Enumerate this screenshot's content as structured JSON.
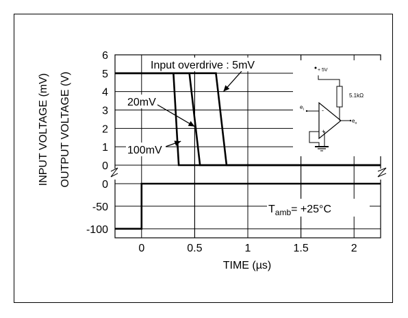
{
  "chart_data": {
    "type": "line",
    "xlabel": "TIME (µs)",
    "ylabel_output": "OUTPUT VOLTAGE (V)",
    "ylabel_input": "INPUT VOLTAGE (mV)",
    "xlim": [
      -0.25,
      2.25
    ],
    "x_ticks": [
      0,
      0.5,
      1,
      1.5,
      2
    ],
    "x_tick_labels": [
      "0",
      "0.5",
      "1",
      "1.5",
      "2"
    ],
    "output_ylim": [
      0,
      6
    ],
    "output_ticks": [
      0,
      1,
      2,
      3,
      4,
      5,
      6
    ],
    "output_tick_labels": [
      "0",
      "1",
      "2",
      "3",
      "4",
      "5",
      "6"
    ],
    "input_ylim": [
      -120,
      0
    ],
    "input_ticks": [
      0,
      -50,
      -100
    ],
    "input_tick_labels": [
      "0",
      "-50",
      "-100"
    ],
    "grid": true,
    "output_series": [
      {
        "name": "100mV",
        "x": [
          -0.25,
          0.3,
          0.35,
          2.25
        ],
        "y": [
          5,
          5,
          0,
          0
        ]
      },
      {
        "name": "20mV",
        "x": [
          -0.25,
          0.45,
          0.55,
          2.25
        ],
        "y": [
          5,
          5,
          0,
          0
        ]
      },
      {
        "name": "5mV",
        "x": [
          -0.25,
          0.7,
          0.8,
          2.25
        ],
        "y": [
          5,
          5,
          0,
          0
        ]
      }
    ],
    "input_series": [
      {
        "x": [
          -0.25,
          0,
          0,
          2.25
        ],
        "y": [
          -100,
          -100,
          0,
          0
        ]
      }
    ],
    "annotations": {
      "overdrive_5mv": "Input overdrive : 5mV",
      "overdrive_20mv": "20mV",
      "overdrive_100mv": "100mV",
      "temperature_main": "T",
      "temperature_sub": "amb",
      "temperature_value": "= +25°C"
    },
    "circuit": {
      "supply": "+ 5V",
      "resistor": "5.1kΩ",
      "input_main": "e",
      "input_sub": "I",
      "output_main": "e",
      "output_sub": "o"
    }
  }
}
